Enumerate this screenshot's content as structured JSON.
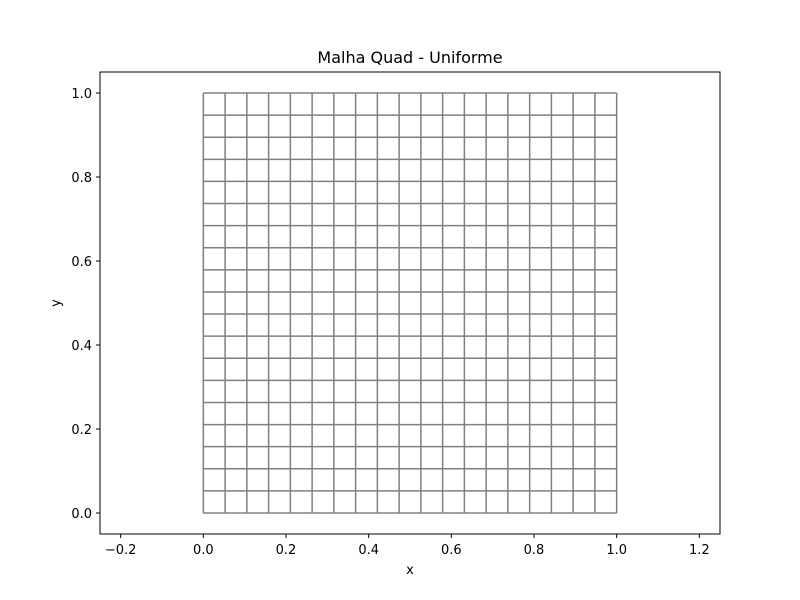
{
  "chart_data": {
    "type": "mesh",
    "title": "Malha Quad - Uniforme",
    "xlabel": "x",
    "ylabel": "y",
    "xlim": [
      -0.25,
      1.25
    ],
    "ylim": [
      -0.05,
      1.05
    ],
    "xticks": [
      -0.2,
      0.0,
      0.2,
      0.4,
      0.6,
      0.8,
      1.0,
      1.2
    ],
    "yticks": [
      0.0,
      0.2,
      0.4,
      0.6,
      0.8,
      1.0
    ],
    "xtick_labels": [
      "−0.2",
      "0.0",
      "0.2",
      "0.4",
      "0.6",
      "0.8",
      "1.0",
      "1.2"
    ],
    "ytick_labels": [
      "0.0",
      "0.2",
      "0.4",
      "0.6",
      "0.8",
      "1.0"
    ],
    "mesh": {
      "x_range": [
        0.0,
        1.0
      ],
      "y_range": [
        0.0,
        1.0
      ],
      "nx": 19,
      "ny": 19,
      "line_color": "#808080"
    },
    "grid": false
  }
}
